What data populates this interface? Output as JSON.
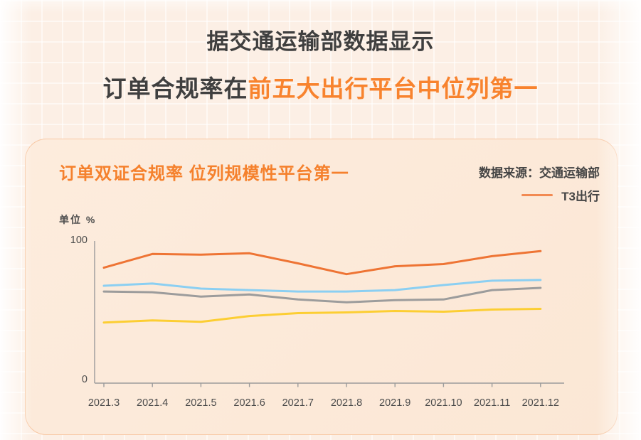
{
  "page": {
    "title_line1": "据交通运输部数据显示",
    "title_line2_prefix": "订单合规率在",
    "title_line2_highlight": "前五大出行平台中位列第一"
  },
  "card": {
    "title": "订单双证合规率  位列规模性平台第一",
    "source_label": "数据来源：交通运输部",
    "unit_label": "单位 %",
    "legend_items": [
      {
        "label": "T3出行",
        "color": "#f28a52"
      }
    ]
  },
  "colors": {
    "accent_orange": "#f8832e",
    "dark_text": "#3f3f3f",
    "axis": "#9b9b9b",
    "page_bg": "#fcefe5",
    "card_bg": "#fbe8d7"
  },
  "chart_data": {
    "type": "line",
    "title": "订单双证合规率  位列规模性平台第一",
    "source": "数据来源：交通运输部",
    "ylabel": "单位 %",
    "ylim": [
      0,
      100
    ],
    "yticks": [
      "0",
      "100"
    ],
    "grid": false,
    "legend_position": "top-right",
    "x": [
      "2021.3",
      "2021.4",
      "2021.5",
      "2021.6",
      "2021.7",
      "2021.8",
      "2021.9",
      "2021.10",
      "2021.11",
      "2021.12"
    ],
    "series": [
      {
        "name": "T3出行",
        "color": "#ee7434",
        "values": [
          80,
          89.5,
          89,
          90,
          83,
          75.5,
          81,
          82.5,
          88,
          91.5
        ]
      },
      {
        "name": "",
        "color": "#8bcff2",
        "values": [
          67.5,
          69,
          65.5,
          64.5,
          63.5,
          63.5,
          64.5,
          68,
          71,
          71.5
        ]
      },
      {
        "name": "",
        "color": "#9c9c9c",
        "values": [
          63.5,
          63,
          60,
          61.5,
          58,
          56,
          57.5,
          58,
          64.5,
          66
        ]
      },
      {
        "name": "",
        "color": "#fcce33",
        "values": [
          42,
          43.5,
          42.5,
          46.5,
          48.5,
          49,
          50,
          49.5,
          51,
          51.5
        ]
      }
    ]
  }
}
